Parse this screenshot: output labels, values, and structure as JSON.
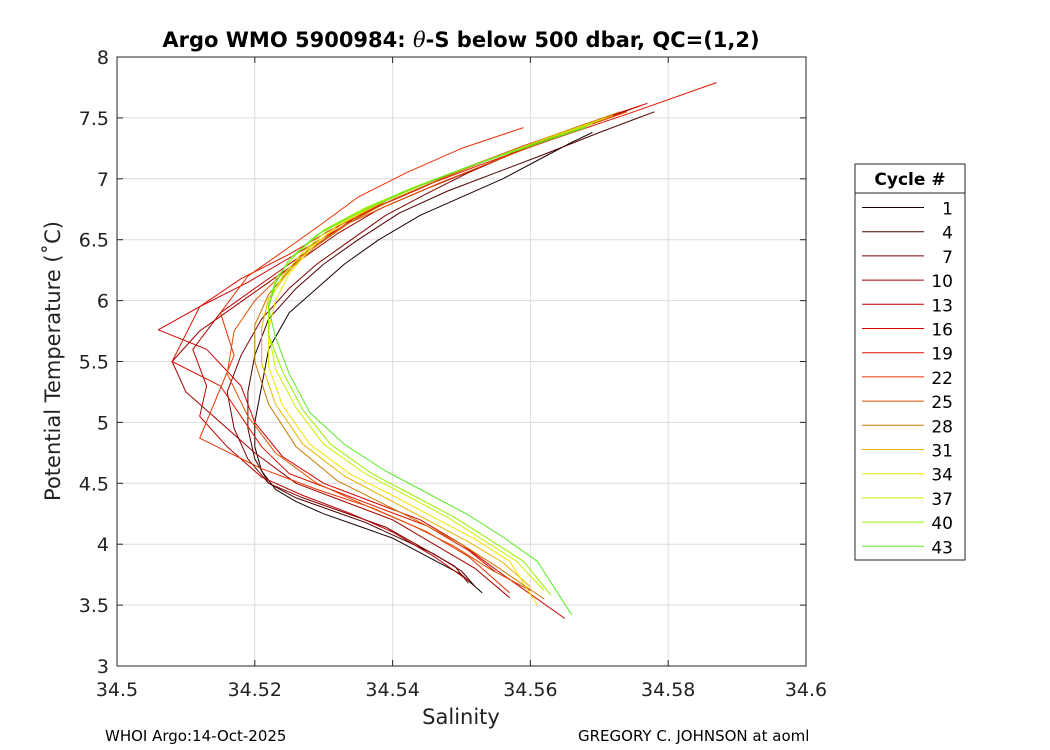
{
  "chart_data": {
    "type": "line",
    "title_prefix": "Argo WMO 5900984: ",
    "title_theta": "θ",
    "title_suffix": "-S below 500 dbar,  QC=(1,2)",
    "xlabel": "Salinity",
    "ylabel": "Potential Temperature (˚C)",
    "xlim": [
      34.5,
      34.6
    ],
    "ylim": [
      3,
      8
    ],
    "xticks": [
      "34.5",
      "34.52",
      "34.54",
      "34.56",
      "34.58",
      "34.6"
    ],
    "yticks": [
      "3",
      "3.5",
      "4",
      "4.5",
      "5",
      "5.5",
      "6",
      "6.5",
      "7",
      "7.5",
      "8"
    ],
    "grid": true,
    "legend_title": "Cycle #",
    "legend_position": "outside-right",
    "series": [
      {
        "name": "1",
        "color": "#1a0000",
        "s": [
          34.569,
          34.566,
          34.561,
          34.556,
          34.55,
          34.544,
          34.538,
          34.533,
          34.529,
          34.525,
          34.522,
          34.521,
          34.52,
          34.52,
          34.521,
          34.523,
          34.526,
          34.53,
          34.535,
          34.54,
          34.545,
          34.55,
          34.553
        ],
        "t": [
          7.38,
          7.3,
          7.15,
          7.0,
          6.85,
          6.7,
          6.5,
          6.3,
          6.1,
          5.9,
          5.6,
          5.3,
          5.0,
          4.8,
          4.6,
          4.45,
          4.35,
          4.25,
          4.15,
          4.05,
          3.9,
          3.75,
          3.6
        ]
      },
      {
        "name": "4",
        "color": "#4d0000",
        "s": [
          34.578,
          34.57,
          34.562,
          34.555,
          34.548,
          34.541,
          34.535,
          34.53,
          34.526,
          34.522,
          34.52,
          34.519,
          34.519,
          34.52,
          34.522,
          34.526,
          34.531,
          34.536,
          34.541,
          34.546,
          34.55,
          34.552
        ],
        "t": [
          7.55,
          7.38,
          7.2,
          7.05,
          6.9,
          6.72,
          6.5,
          6.3,
          6.1,
          5.85,
          5.55,
          5.25,
          4.95,
          4.7,
          4.5,
          4.38,
          4.28,
          4.18,
          4.05,
          3.92,
          3.78,
          3.65
        ]
      },
      {
        "name": "7",
        "color": "#800000",
        "s": [
          34.575,
          34.566,
          34.558,
          34.551,
          34.545,
          34.539,
          34.534,
          34.529,
          34.525,
          34.521,
          34.518,
          34.516,
          34.517,
          34.519,
          34.522,
          34.527,
          34.533,
          34.539,
          34.544,
          34.549,
          34.551
        ],
        "t": [
          7.58,
          7.4,
          7.22,
          7.05,
          6.88,
          6.7,
          6.5,
          6.3,
          6.1,
          5.85,
          5.55,
          5.25,
          4.95,
          4.7,
          4.5,
          4.38,
          4.26,
          4.14,
          3.98,
          3.82,
          3.68
        ]
      },
      {
        "name": "10",
        "color": "#a00000",
        "s": [
          34.576,
          34.567,
          34.559,
          34.552,
          34.545,
          34.538,
          34.532,
          34.527,
          34.522,
          34.517,
          34.512,
          34.508,
          34.51,
          34.515,
          34.52,
          34.526,
          34.533,
          34.54,
          34.546,
          34.552,
          34.557
        ],
        "t": [
          7.6,
          7.42,
          7.25,
          7.08,
          6.92,
          6.75,
          6.55,
          6.35,
          6.15,
          5.95,
          5.75,
          5.5,
          5.25,
          5.0,
          4.75,
          4.5,
          4.35,
          4.2,
          4.0,
          3.8,
          3.56
        ]
      },
      {
        "name": "13",
        "color": "#bb0000",
        "s": [
          34.574,
          34.565,
          34.556,
          34.548,
          34.541,
          34.535,
          34.53,
          34.525,
          34.52,
          34.515,
          34.511,
          34.513,
          34.512,
          34.516,
          34.521,
          34.527,
          34.534,
          34.54,
          34.546,
          34.551
        ],
        "t": [
          7.55,
          7.38,
          7.2,
          7.03,
          6.88,
          6.7,
          6.5,
          6.3,
          6.1,
          5.9,
          5.6,
          5.3,
          5.05,
          4.8,
          4.55,
          4.4,
          4.25,
          4.1,
          3.9,
          3.7
        ]
      },
      {
        "name": "16",
        "color": "#d20000",
        "s": [
          34.577,
          34.568,
          34.559,
          34.551,
          34.544,
          34.537,
          34.531,
          34.525,
          34.519,
          34.512,
          34.506,
          34.513,
          34.518,
          34.52,
          34.524,
          34.53,
          34.537,
          34.544,
          34.55,
          34.556,
          34.565
        ],
        "t": [
          7.62,
          7.45,
          7.27,
          7.1,
          6.92,
          6.75,
          6.55,
          6.35,
          6.15,
          5.95,
          5.76,
          5.6,
          5.3,
          5.0,
          4.72,
          4.5,
          4.35,
          4.2,
          4.0,
          3.75,
          3.39
        ]
      },
      {
        "name": "19",
        "color": "#e01500",
        "s": [
          34.587,
          34.575,
          34.563,
          34.553,
          34.545,
          34.538,
          34.531,
          34.525,
          34.518,
          34.512,
          34.508,
          34.515,
          34.518,
          34.521,
          34.525,
          34.531,
          34.538,
          34.545,
          34.551,
          34.555
        ],
        "t": [
          7.79,
          7.55,
          7.32,
          7.12,
          6.95,
          6.78,
          6.58,
          6.38,
          6.18,
          5.95,
          5.5,
          5.3,
          5.05,
          4.8,
          4.58,
          4.45,
          4.3,
          4.15,
          3.95,
          3.77
        ]
      },
      {
        "name": "22",
        "color": "#e83200",
        "s": [
          34.559,
          34.55,
          34.542,
          34.535,
          34.529,
          34.524,
          34.519,
          34.515,
          34.517,
          34.512,
          34.521,
          34.529,
          34.537,
          34.545,
          34.551,
          34.557
        ],
        "t": [
          7.42,
          7.25,
          7.05,
          6.85,
          6.6,
          6.4,
          6.2,
          5.9,
          5.55,
          4.87,
          4.62,
          4.45,
          4.3,
          4.1,
          3.9,
          3.6
        ]
      },
      {
        "name": "25",
        "color": "#e05000",
        "s": [
          34.574,
          34.564,
          34.555,
          34.547,
          34.54,
          34.533,
          34.528,
          34.524,
          34.52,
          34.517,
          34.516,
          34.519,
          34.523,
          34.529,
          34.536,
          34.543,
          34.549,
          34.554,
          34.56
        ],
        "t": [
          7.55,
          7.35,
          7.15,
          6.97,
          6.8,
          6.62,
          6.42,
          6.22,
          6.0,
          5.75,
          5.4,
          5.05,
          4.75,
          4.5,
          4.32,
          4.15,
          3.98,
          3.8,
          3.62
        ]
      },
      {
        "name": "28",
        "color": "#c87800",
        "s": [
          34.573,
          34.564,
          34.555,
          34.547,
          34.54,
          34.534,
          34.529,
          34.525,
          34.522,
          34.52,
          34.52,
          34.522,
          34.526,
          34.532,
          34.538,
          34.544,
          34.55,
          34.555,
          34.562
        ],
        "t": [
          7.55,
          7.37,
          7.18,
          7.0,
          6.83,
          6.65,
          6.45,
          6.25,
          6.05,
          5.8,
          5.5,
          5.15,
          4.8,
          4.52,
          4.35,
          4.18,
          4.0,
          3.82,
          3.55
        ]
      },
      {
        "name": "31",
        "color": "#e6b400",
        "s": [
          34.572,
          34.563,
          34.554,
          34.546,
          34.539,
          34.533,
          34.528,
          34.525,
          34.522,
          34.521,
          34.521,
          34.523,
          34.527,
          34.533,
          34.539,
          34.545,
          34.551,
          34.556,
          34.56
        ],
        "t": [
          7.52,
          7.35,
          7.16,
          6.99,
          6.82,
          6.64,
          6.44,
          6.24,
          6.02,
          5.78,
          5.48,
          5.15,
          4.82,
          4.56,
          4.38,
          4.2,
          4.02,
          3.85,
          3.65
        ]
      },
      {
        "name": "34",
        "color": "#f0e600",
        "s": [
          34.571,
          34.562,
          34.553,
          34.545,
          34.538,
          34.532,
          34.528,
          34.525,
          34.523,
          34.522,
          34.522,
          34.524,
          34.528,
          34.534,
          34.54,
          34.546,
          34.552,
          34.557,
          34.561
        ],
        "t": [
          7.5,
          7.32,
          7.14,
          6.97,
          6.8,
          6.62,
          6.42,
          6.22,
          6.0,
          5.76,
          5.46,
          5.14,
          4.82,
          4.57,
          4.4,
          4.22,
          4.04,
          3.86,
          3.5
        ]
      },
      {
        "name": "37",
        "color": "#c8f000",
        "s": [
          34.57,
          34.561,
          34.552,
          34.544,
          34.537,
          34.531,
          34.527,
          34.524,
          34.522,
          34.522,
          34.523,
          34.526,
          34.53,
          34.536,
          34.542,
          34.548,
          34.553,
          34.558,
          34.562
        ],
        "t": [
          7.48,
          7.3,
          7.12,
          6.95,
          6.78,
          6.6,
          6.4,
          6.2,
          5.98,
          5.74,
          5.44,
          5.12,
          4.82,
          4.58,
          4.4,
          4.22,
          4.04,
          3.86,
          3.62
        ]
      },
      {
        "name": "40",
        "color": "#96f000",
        "s": [
          34.569,
          34.56,
          34.551,
          34.543,
          34.536,
          34.53,
          34.526,
          34.523,
          34.522,
          34.522,
          34.524,
          34.527,
          34.531,
          34.537,
          34.543,
          34.549,
          34.554,
          34.559,
          34.563
        ],
        "t": [
          7.45,
          7.28,
          7.1,
          6.93,
          6.76,
          6.58,
          6.38,
          6.18,
          5.96,
          5.72,
          5.42,
          5.1,
          4.82,
          4.58,
          4.4,
          4.22,
          4.04,
          3.86,
          3.58
        ]
      },
      {
        "name": "43",
        "color": "#5aeb2a",
        "s": [
          34.568,
          34.559,
          34.55,
          34.542,
          34.535,
          34.529,
          34.525,
          34.523,
          34.522,
          34.523,
          34.525,
          34.528,
          34.533,
          34.539,
          34.545,
          34.551,
          34.556,
          34.561,
          34.566
        ],
        "t": [
          7.42,
          7.25,
          7.08,
          6.9,
          6.72,
          6.54,
          6.34,
          6.14,
          5.94,
          5.7,
          5.4,
          5.08,
          4.82,
          4.6,
          4.42,
          4.24,
          4.06,
          3.86,
          3.42
        ]
      }
    ]
  },
  "footer": {
    "left": "WHOI Argo:14-Oct-2025",
    "right": "GREGORY C. JOHNSON at aoml"
  }
}
